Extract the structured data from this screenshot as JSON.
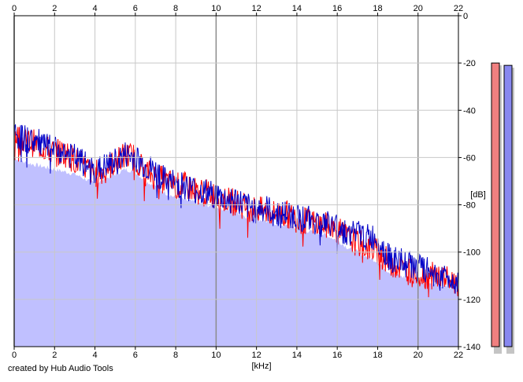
{
  "credit": "created by Hub Audio Tools",
  "colors": {
    "background": "#ffffff",
    "grid": "#c8c8c8",
    "grid_major": "#8c8c8c",
    "fill": "#c0c0ff",
    "left_channel": "#ff0000",
    "right_channel": "#0000c8",
    "meter_left": "#f08080",
    "meter_right": "#8888f0"
  },
  "chart_data": {
    "type": "area",
    "title": "",
    "xlabel": "[kHz]",
    "ylabel": "[dB]",
    "xlim": [
      0,
      22
    ],
    "ylim": [
      -140,
      0
    ],
    "x_ticks": [
      "0",
      "2",
      "4",
      "6",
      "8",
      "10",
      "12",
      "14",
      "16",
      "18",
      "20",
      "22"
    ],
    "y_ticks": [
      "0",
      "-20",
      "-40",
      "-60",
      "-80",
      "-100",
      "-120",
      "-140"
    ],
    "grid": true,
    "legend": "none",
    "x": [
      0,
      0.5,
      1,
      1.5,
      2,
      2.5,
      3,
      3.5,
      4,
      4.5,
      5,
      5.5,
      6,
      6.5,
      7,
      7.5,
      8,
      8.5,
      9,
      9.5,
      10,
      10.5,
      11,
      11.5,
      12,
      12.5,
      13,
      13.5,
      14,
      14.5,
      15,
      15.5,
      16,
      16.5,
      17,
      17.5,
      18,
      18.5,
      19,
      19.5,
      20,
      20.5,
      21,
      21.5,
      22
    ],
    "series": [
      {
        "values": [
          -50,
          -53,
          -54,
          -56,
          -58,
          -58,
          -61,
          -64,
          -67,
          -65,
          -62,
          -59,
          -60,
          -66,
          -68,
          -70,
          -72,
          -72,
          -74,
          -75,
          -76,
          -78,
          -79,
          -81,
          -82,
          -83,
          -84,
          -84,
          -86,
          -87,
          -88,
          -89,
          -91,
          -94,
          -96,
          -98,
          -100,
          -104,
          -106,
          -108,
          -109,
          -110,
          -110,
          -112,
          -113
        ]
      },
      {
        "values": [
          -50,
          -52,
          -53,
          -55,
          -57,
          -58,
          -60,
          -63,
          -66,
          -64,
          -62,
          -59,
          -60,
          -64,
          -66,
          -70,
          -71,
          -72,
          -74,
          -75,
          -76,
          -78,
          -78,
          -81,
          -82,
          -82,
          -84,
          -84,
          -85,
          -86,
          -87,
          -88,
          -89,
          -92,
          -92,
          -94,
          -94,
          -102,
          -104,
          -105,
          -107,
          -108,
          -110,
          -111,
          -112
        ]
      }
    ],
    "fill_values": [
      -60,
      -62,
      -63,
      -64,
      -65,
      -66,
      -67,
      -69,
      -71,
      -69,
      -67,
      -65,
      -66,
      -70,
      -72,
      -75,
      -77,
      -78,
      -79,
      -80,
      -81,
      -82,
      -83,
      -85,
      -86,
      -87,
      -88,
      -89,
      -90,
      -91,
      -92,
      -93,
      -95,
      -98,
      -100,
      -102,
      -104,
      -108,
      -110,
      -111,
      -112,
      -113,
      -114,
      -115,
      -116
    ],
    "meters": {
      "ylim": [
        -140,
        0
      ],
      "left": -20,
      "right": -21
    }
  }
}
